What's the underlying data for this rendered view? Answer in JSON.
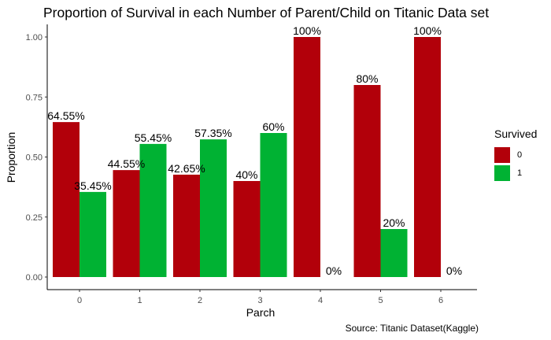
{
  "chart_data": {
    "type": "bar",
    "title": "Proportion of Survival in each Number of Parent/Child on Titanic Data set",
    "xlabel": "Parch",
    "ylabel": "Proportion",
    "categories": [
      "0",
      "1",
      "2",
      "3",
      "4",
      "5",
      "6"
    ],
    "ylim": [
      0,
      1.0
    ],
    "yticks": [
      "0.00",
      "0.25",
      "0.50",
      "0.75",
      "1.00"
    ],
    "legend_title": "Survived",
    "legend_position": "right",
    "grid": false,
    "series": [
      {
        "name": "0",
        "color": "#b2000a",
        "values": [
          0.6455,
          0.4455,
          0.4265,
          0.4,
          1.0,
          0.8,
          1.0
        ],
        "labels": [
          "64.55%",
          "44.55%",
          "42.65%",
          "40%",
          "100%",
          "80%",
          "100%"
        ]
      },
      {
        "name": "1",
        "color": "#00b233",
        "values": [
          0.3545,
          0.5545,
          0.5735,
          0.6,
          0.0,
          0.2,
          0.0
        ],
        "labels": [
          "35.45%",
          "55.45%",
          "57.35%",
          "60%",
          "0%",
          "20%",
          "0%"
        ]
      }
    ],
    "caption": "Source: Titanic Dataset(Kaggle)"
  }
}
